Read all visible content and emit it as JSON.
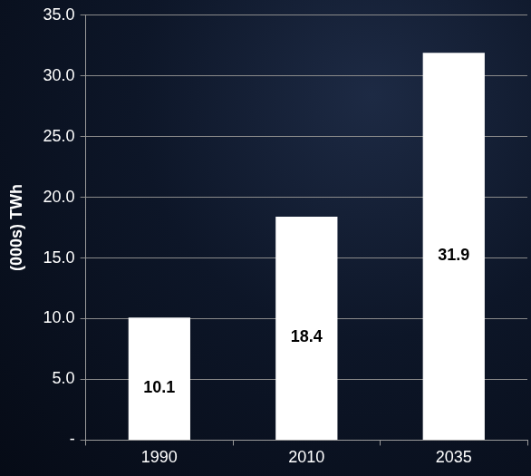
{
  "chart_data": {
    "type": "bar",
    "y_label": "(000s) TWh",
    "categories": [
      "1990",
      "2010",
      "2035"
    ],
    "values": [
      10.1,
      18.4,
      31.9
    ],
    "color": "#ffffff",
    "ylim": [
      0,
      35
    ],
    "yticks": [
      {
        "value": 0,
        "label": "-"
      },
      {
        "value": 5,
        "label": "5.0"
      },
      {
        "value": 10,
        "label": "10.0"
      },
      {
        "value": 15,
        "label": "15.0"
      },
      {
        "value": 20,
        "label": "20.0"
      },
      {
        "value": 25,
        "label": "25.0"
      },
      {
        "value": 30,
        "label": "30.0"
      },
      {
        "value": 35,
        "label": "35.0"
      }
    ],
    "grid": true,
    "data_labels": true
  }
}
